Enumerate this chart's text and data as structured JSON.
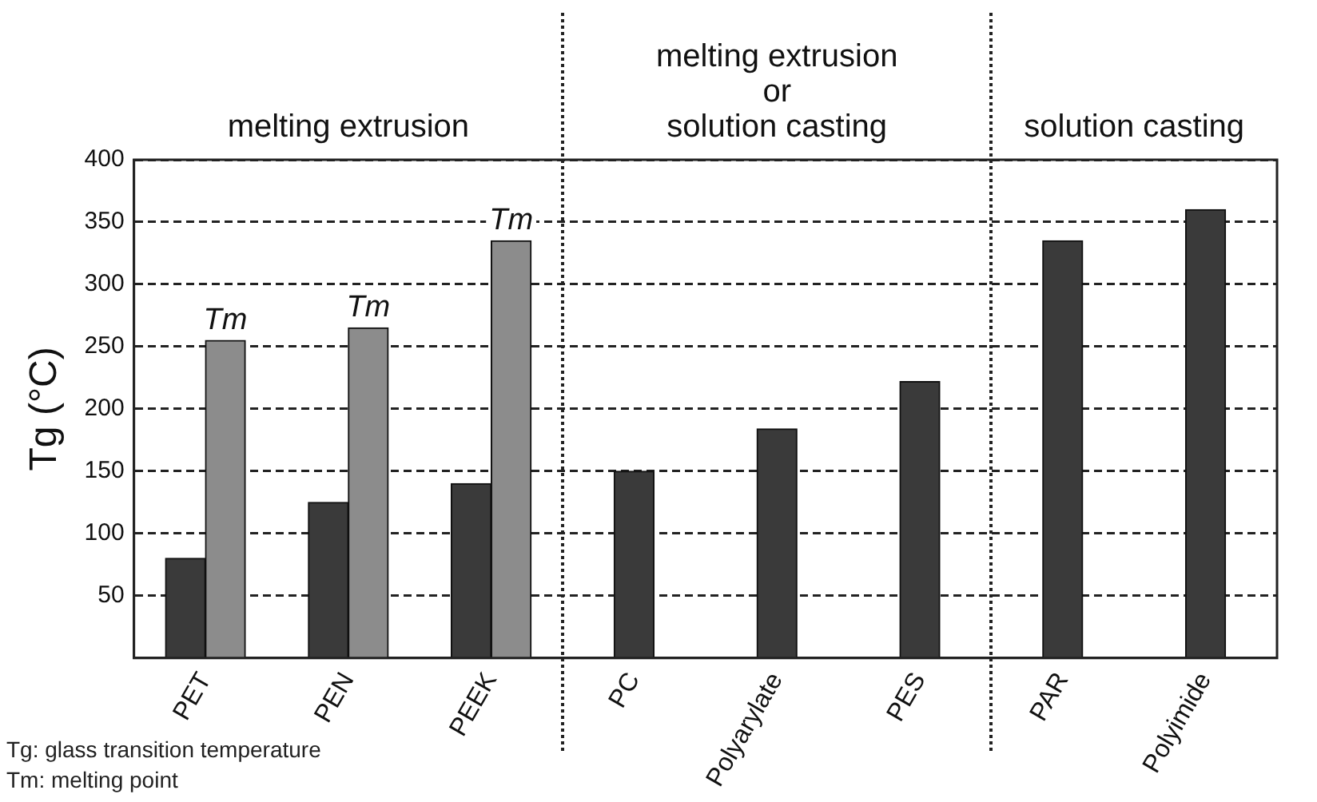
{
  "chart_data": {
    "type": "bar",
    "ylabel": "Tg (°C)",
    "categories": [
      "PET",
      "PEN",
      "PEEK",
      "PC",
      "Polyarylate",
      "PES",
      "PAR",
      "Polyimide"
    ],
    "series": [
      {
        "color": "#3a3a3a",
        "values": [
          80,
          125,
          140,
          150,
          184,
          222,
          335,
          360
        ]
      },
      {
        "color": "#8c8c8c",
        "values": [
          255,
          265,
          335,
          null,
          null,
          null,
          null,
          null
        ]
      }
    ],
    "ylim": [
      0,
      400
    ],
    "yticks": [
      50,
      100,
      150,
      200,
      250,
      300,
      350,
      400
    ],
    "grid": "y",
    "legend": false,
    "annotations": [
      "melting extrusion",
      "melting extrusion\nor\nsolution casting",
      "solution casting",
      {
        "text": "Tm",
        "x": "PET",
        "y": 255
      },
      {
        "text": "Tm",
        "x": "PEN",
        "y": 265
      },
      {
        "text": "Tm",
        "x": "PEEK",
        "y": 335
      },
      "Tg: glass transition temperature",
      "Tm: melting point"
    ]
  }
}
